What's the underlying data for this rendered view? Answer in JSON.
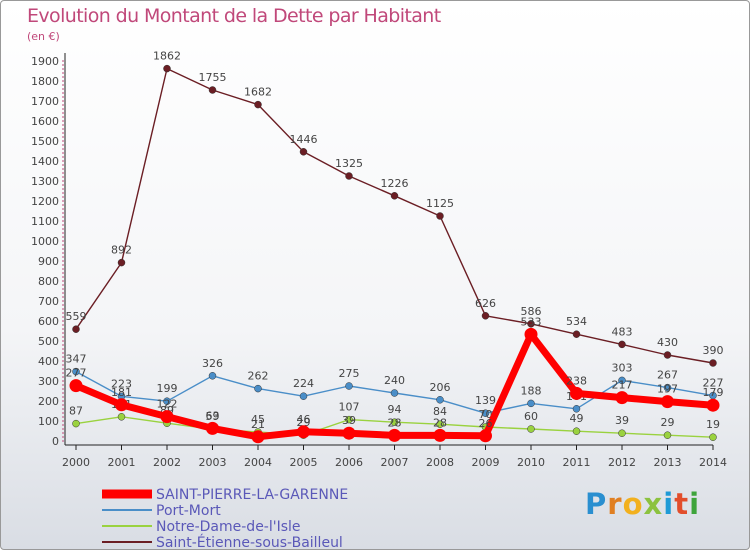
{
  "title": "Evolution du Montant de la Dette par Habitant",
  "unit": "(en €)",
  "logo": [
    "P",
    "r",
    "o",
    "x",
    "i",
    "t",
    "i"
  ],
  "chart_data": {
    "type": "line",
    "x": [
      "2000",
      "2001",
      "2002",
      "2003",
      "2004",
      "2005",
      "2006",
      "2007",
      "2008",
      "2009",
      "2010",
      "2011",
      "2012",
      "2013",
      "2014"
    ],
    "ylim": [
      0,
      1900
    ],
    "yticks": [
      0,
      100,
      200,
      300,
      400,
      500,
      600,
      700,
      800,
      900,
      1000,
      1100,
      1200,
      1300,
      1400,
      1500,
      1600,
      1700,
      1800,
      1900
    ],
    "grid": false,
    "legend_position": "bottom-left",
    "series": [
      {
        "name": "Saint-Étienne-sous-Bailleul",
        "color": "#6b1e24",
        "values": [
          559,
          892,
          1862,
          1755,
          1682,
          1446,
          1325,
          1226,
          1125,
          626,
          586,
          534,
          483,
          430,
          390
        ]
      },
      {
        "name": "Port-Mort",
        "color": "#4a8ec8",
        "values": [
          347,
          223,
          199,
          326,
          262,
          224,
          275,
          240,
          206,
          139,
          188,
          161,
          303,
          267,
          227
        ]
      },
      {
        "name": "Notre-Dame-de-l'Isle",
        "color": "#9ad23f",
        "values": [
          87,
          121,
          89,
          59,
          45,
          29,
          107,
          94,
          84,
          70,
          60,
          49,
          39,
          29,
          19
        ]
      },
      {
        "name": "SAINT-PIERRE-LA-GARENNE",
        "color": "#ff0000",
        "values": [
          277,
          181,
          122,
          63,
          21,
          46,
          39,
          28,
          28,
          26,
          533,
          238,
          217,
          197,
          179
        ]
      }
    ]
  }
}
